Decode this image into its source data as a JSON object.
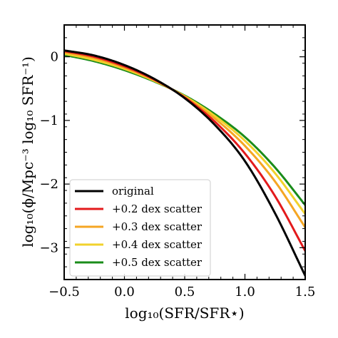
{
  "chart_data": {
    "type": "line",
    "xlabel": "log₁₀(SFR/SFR⋆)",
    "ylabel": "log₁₀(ϕ/Mpc⁻³ log₁₀ SFR⁻¹)",
    "xlim": [
      -0.5,
      1.5
    ],
    "ylim": [
      -3.5,
      0.5
    ],
    "xticks": [
      -0.5,
      0.0,
      0.5,
      1.0,
      1.5
    ],
    "xtick_labels": [
      "−0.5",
      "0.0",
      "0.5",
      "1.0",
      "1.5"
    ],
    "yticks": [
      0,
      -1,
      -2,
      -3
    ],
    "ytick_labels": [
      "0",
      "−1",
      "−2",
      "−3"
    ],
    "grid": false,
    "legend_position": "lower-left",
    "series": [
      {
        "name": "original",
        "color": "#000000",
        "x": [
          -0.5,
          -0.25,
          0.0,
          0.25,
          0.5,
          0.75,
          1.0,
          1.25,
          1.5
        ],
        "y": [
          0.1,
          0.02,
          -0.13,
          -0.35,
          -0.65,
          -1.07,
          -1.64,
          -2.46,
          -3.44
        ]
      },
      {
        "name": "+0.2 dex scatter",
        "color": "#e31a1c",
        "x": [
          -0.5,
          -0.25,
          0.0,
          0.25,
          0.5,
          0.75,
          1.0,
          1.25,
          1.5
        ],
        "y": [
          0.09,
          0.0,
          -0.15,
          -0.36,
          -0.64,
          -1.02,
          -1.52,
          -2.19,
          -3.05
        ]
      },
      {
        "name": "+0.3 dex scatter",
        "color": "#f5a623",
        "x": [
          -0.5,
          -0.25,
          0.0,
          0.25,
          0.5,
          0.75,
          1.0,
          1.25,
          1.5
        ],
        "y": [
          0.07,
          -0.02,
          -0.17,
          -0.37,
          -0.63,
          -0.97,
          -1.4,
          -1.96,
          -2.68
        ]
      },
      {
        "name": "+0.4 dex scatter",
        "color": "#f2d22c",
        "x": [
          -0.5,
          -0.25,
          0.0,
          0.25,
          0.5,
          0.75,
          1.0,
          1.25,
          1.5
        ],
        "y": [
          0.05,
          -0.05,
          -0.19,
          -0.38,
          -0.62,
          -0.93,
          -1.32,
          -1.83,
          -2.47
        ]
      },
      {
        "name": "+0.5 dex scatter",
        "color": "#1a8c1a",
        "x": [
          -0.5,
          -0.25,
          0.0,
          0.25,
          0.5,
          0.75,
          1.0,
          1.25,
          1.5
        ],
        "y": [
          0.03,
          -0.07,
          -0.21,
          -0.39,
          -0.61,
          -0.9,
          -1.26,
          -1.74,
          -2.33
        ]
      }
    ]
  }
}
